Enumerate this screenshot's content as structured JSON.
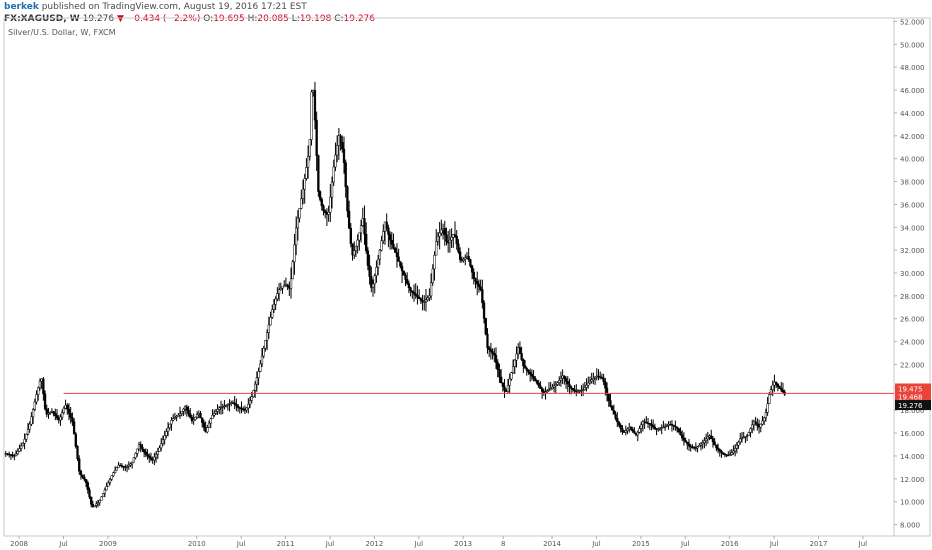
{
  "header": {
    "author": "berkek",
    "published_text": "published on TradingView.com, August 19, 2016 17:21 EST",
    "symbol": "FX:XAGUSD, W",
    "last": "19.276",
    "change": "▼ −0.434 (−2.2%)",
    "open_label": "O:",
    "open": "19.695",
    "high_label": "H:",
    "high": "20.085",
    "low_label": "L:",
    "low": "19.198",
    "close_label": "C:",
    "close": "19.276"
  },
  "chart_description": "Silver/U.S. Dollar, W, FXCM",
  "colors": {
    "candle": "#000000",
    "horizontal_line": "#e8443a",
    "label_red": "#e8443a",
    "label_black": "#111111",
    "axis_text": "#555555"
  },
  "chart_data": {
    "type": "line",
    "title": "Silver/U.S. Dollar, W, FXCM",
    "xlabel": "",
    "ylabel": "",
    "ylim": [
      7.0,
      52.3
    ],
    "y_ticks": [
      "8.000",
      "10.000",
      "12.000",
      "14.000",
      "16.000",
      "18.000",
      "20.000",
      "22.000",
      "24.000",
      "26.000",
      "28.000",
      "30.000",
      "32.000",
      "34.000",
      "36.000",
      "38.000",
      "40.000",
      "42.000",
      "44.000",
      "46.000",
      "48.000",
      "50.000",
      "52.000"
    ],
    "x_ticks": [
      {
        "label": "2008",
        "t": 2008.0
      },
      {
        "label": "Jul",
        "t": 2008.5
      },
      {
        "label": "2009",
        "t": 2009.0
      },
      {
        "label": "2010",
        "t": 2010.0
      },
      {
        "label": "Jul",
        "t": 2010.5
      },
      {
        "label": "2011",
        "t": 2011.0
      },
      {
        "label": "Jul",
        "t": 2011.5
      },
      {
        "label": "2012",
        "t": 2012.0
      },
      {
        "label": "Jul",
        "t": 2012.5
      },
      {
        "label": "2013",
        "t": 2013.0
      },
      {
        "label": "8",
        "t": 2013.45
      },
      {
        "label": "2014",
        "t": 2014.0
      },
      {
        "label": "Jul",
        "t": 2014.5
      },
      {
        "label": "2015",
        "t": 2015.0
      },
      {
        "label": "Jul",
        "t": 2015.5
      },
      {
        "label": "2016",
        "t": 2016.0
      },
      {
        "label": "Jul",
        "t": 2016.5
      },
      {
        "label": "2017",
        "t": 2017.0
      },
      {
        "label": "Jul",
        "t": 2017.5
      }
    ],
    "series": [
      {
        "values": [
          [
            2007.85,
            14.2
          ],
          [
            2007.95,
            14.0
          ],
          [
            2008.05,
            15.2
          ],
          [
            2008.12,
            16.8
          ],
          [
            2008.2,
            19.5
          ],
          [
            2008.25,
            21.0
          ],
          [
            2008.3,
            17.6
          ],
          [
            2008.37,
            17.9
          ],
          [
            2008.45,
            17.1
          ],
          [
            2008.52,
            18.5
          ],
          [
            2008.6,
            17.0
          ],
          [
            2008.68,
            12.5
          ],
          [
            2008.75,
            11.8
          ],
          [
            2008.82,
            9.5
          ],
          [
            2008.9,
            10.0
          ],
          [
            2008.97,
            11.1
          ],
          [
            2009.05,
            12.4
          ],
          [
            2009.12,
            13.2
          ],
          [
            2009.2,
            13.0
          ],
          [
            2009.27,
            13.4
          ],
          [
            2009.35,
            15.0
          ],
          [
            2009.42,
            14.2
          ],
          [
            2009.5,
            13.6
          ],
          [
            2009.57,
            14.5
          ],
          [
            2009.65,
            16.0
          ],
          [
            2009.72,
            17.2
          ],
          [
            2009.8,
            17.6
          ],
          [
            2009.87,
            18.3
          ],
          [
            2009.95,
            17.0
          ],
          [
            2010.02,
            17.8
          ],
          [
            2010.1,
            16.1
          ],
          [
            2010.17,
            17.5
          ],
          [
            2010.25,
            18.2
          ],
          [
            2010.32,
            18.4
          ],
          [
            2010.4,
            18.7
          ],
          [
            2010.47,
            18.2
          ],
          [
            2010.55,
            18.0
          ],
          [
            2010.62,
            19.2
          ],
          [
            2010.7,
            21.5
          ],
          [
            2010.77,
            24.0
          ],
          [
            2010.85,
            26.8
          ],
          [
            2010.92,
            28.5
          ],
          [
            2011.0,
            29.0
          ],
          [
            2011.05,
            28.6
          ],
          [
            2011.12,
            34.0
          ],
          [
            2011.2,
            37.5
          ],
          [
            2011.27,
            41.0
          ],
          [
            2011.3,
            47.5
          ],
          [
            2011.33,
            43.5
          ],
          [
            2011.37,
            37.0
          ],
          [
            2011.42,
            35.5
          ],
          [
            2011.48,
            35.0
          ],
          [
            2011.55,
            39.8
          ],
          [
            2011.6,
            42.0
          ],
          [
            2011.65,
            40.5
          ],
          [
            2011.7,
            35.0
          ],
          [
            2011.75,
            31.5
          ],
          [
            2011.8,
            32.5
          ],
          [
            2011.87,
            34.8
          ],
          [
            2011.92,
            31.0
          ],
          [
            2011.97,
            28.5
          ],
          [
            2012.05,
            31.5
          ],
          [
            2012.12,
            34.5
          ],
          [
            2012.17,
            33.0
          ],
          [
            2012.25,
            31.5
          ],
          [
            2012.32,
            30.0
          ],
          [
            2012.4,
            28.5
          ],
          [
            2012.47,
            28.0
          ],
          [
            2012.55,
            27.4
          ],
          [
            2012.62,
            28.0
          ],
          [
            2012.7,
            33.0
          ],
          [
            2012.77,
            34.0
          ],
          [
            2012.82,
            32.5
          ],
          [
            2012.9,
            33.5
          ],
          [
            2012.97,
            31.0
          ],
          [
            2013.05,
            31.5
          ],
          [
            2013.12,
            29.5
          ],
          [
            2013.2,
            28.5
          ],
          [
            2013.27,
            23.5
          ],
          [
            2013.35,
            22.8
          ],
          [
            2013.42,
            20.5
          ],
          [
            2013.48,
            19.5
          ],
          [
            2013.55,
            21.5
          ],
          [
            2013.62,
            23.5
          ],
          [
            2013.68,
            21.8
          ],
          [
            2013.75,
            21.2
          ],
          [
            2013.82,
            20.5
          ],
          [
            2013.9,
            19.5
          ],
          [
            2013.97,
            19.8
          ],
          [
            2014.05,
            20.3
          ],
          [
            2014.12,
            21.0
          ],
          [
            2014.2,
            20.0
          ],
          [
            2014.27,
            19.6
          ],
          [
            2014.35,
            19.8
          ],
          [
            2014.42,
            20.5
          ],
          [
            2014.5,
            21.0
          ],
          [
            2014.57,
            20.8
          ],
          [
            2014.65,
            18.5
          ],
          [
            2014.72,
            17.2
          ],
          [
            2014.8,
            16.0
          ],
          [
            2014.87,
            16.5
          ],
          [
            2014.95,
            15.8
          ],
          [
            2015.02,
            17.0
          ],
          [
            2015.1,
            16.8
          ],
          [
            2015.17,
            16.3
          ],
          [
            2015.25,
            16.5
          ],
          [
            2015.32,
            16.8
          ],
          [
            2015.4,
            16.5
          ],
          [
            2015.47,
            15.5
          ],
          [
            2015.55,
            14.8
          ],
          [
            2015.62,
            14.7
          ],
          [
            2015.7,
            15.2
          ],
          [
            2015.77,
            15.8
          ],
          [
            2015.85,
            14.7
          ],
          [
            2015.92,
            14.2
          ],
          [
            2015.99,
            14.0
          ],
          [
            2016.05,
            14.5
          ],
          [
            2016.12,
            15.5
          ],
          [
            2016.2,
            15.8
          ],
          [
            2016.27,
            17.0
          ],
          [
            2016.33,
            16.5
          ],
          [
            2016.4,
            17.5
          ],
          [
            2016.45,
            19.5
          ],
          [
            2016.5,
            20.5
          ],
          [
            2016.55,
            20.0
          ],
          [
            2016.6,
            19.6
          ],
          [
            2016.63,
            19.276
          ]
        ]
      }
    ],
    "horizontal_line": {
      "value": 19.468
    },
    "price_labels": [
      {
        "text": "19.475",
        "style": "red"
      },
      {
        "text": "19.468",
        "style": "red"
      },
      {
        "text": "19.276",
        "style": "black"
      }
    ],
    "grid": false,
    "legend": "none"
  }
}
